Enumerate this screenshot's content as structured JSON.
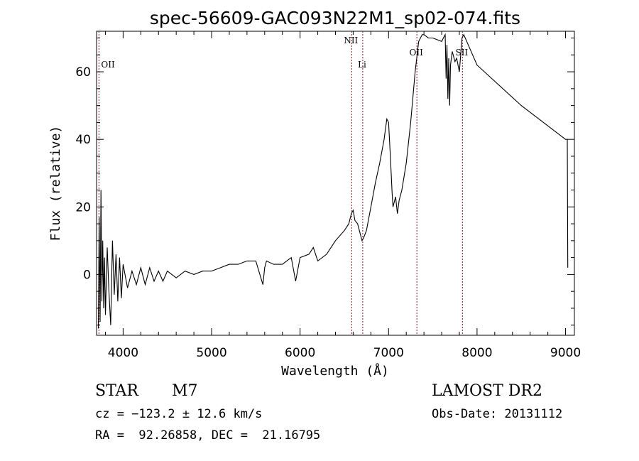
{
  "chart_data": {
    "type": "line",
    "title": "spec-56609-GAC093N22M1_sp02-074.fits",
    "xlabel": "Wavelength (Å)",
    "ylabel": "Flux (relative)",
    "xlim": [
      3700,
      9100
    ],
    "ylim": [
      -18,
      72
    ],
    "xticks": [
      4000,
      5000,
      6000,
      7000,
      8000,
      9000
    ],
    "yticks": [
      0,
      20,
      40,
      60
    ],
    "grid": false,
    "line_color": "#000000",
    "marker_color": "#8b1a1a",
    "lines": [
      {
        "name": "OII",
        "wave": 3727
      },
      {
        "name": "NII",
        "wave": 6583
      },
      {
        "name": "Li",
        "wave": 6708
      },
      {
        "name": "OII",
        "wave": 7320
      },
      {
        "name": "SII",
        "wave": 7835
      }
    ],
    "series": [
      {
        "x": [
          3720,
          3730,
          3740,
          3750,
          3760,
          3770,
          3780,
          3790,
          3800,
          3820,
          3840,
          3860,
          3880,
          3900,
          3920,
          3940,
          3960,
          3980,
          4000,
          4050,
          4100,
          4150,
          4200,
          4250,
          4300,
          4350,
          4400,
          4450,
          4500,
          4600,
          4700,
          4800,
          4900,
          5000,
          5100,
          5200,
          5300,
          5400,
          5500,
          5580,
          5600,
          5620,
          5700,
          5800,
          5900,
          5950,
          6000,
          6100,
          6150,
          6200,
          6300,
          6400,
          6500,
          6550,
          6580,
          6600,
          6620,
          6650,
          6680,
          6700,
          6720,
          6750,
          6800,
          6850,
          6900,
          6950,
          6980,
          7000,
          7020,
          7040,
          7050,
          7080,
          7100,
          7120,
          7150,
          7200,
          7250,
          7300,
          7340,
          7380,
          7400,
          7450,
          7500,
          7600,
          7620,
          7640,
          7650,
          7660,
          7670,
          7680,
          7690,
          7700,
          7720,
          7750,
          7770,
          7800,
          7830,
          7850,
          8000,
          8500,
          9000,
          9020,
          9025
        ],
        "y": [
          -16,
          17,
          -14,
          25,
          -8,
          10,
          -10,
          5,
          -12,
          8,
          -5,
          -15,
          10,
          -6,
          6,
          -8,
          5,
          -7,
          3,
          -4,
          1,
          -3,
          2,
          -3,
          2,
          -2,
          1,
          -2,
          1,
          -1,
          1,
          0,
          1,
          1,
          2,
          3,
          3,
          4,
          4,
          -3,
          2,
          4,
          3,
          3,
          5,
          -2,
          5,
          6,
          8,
          4,
          6,
          10,
          13,
          15,
          18,
          19,
          16,
          15,
          12,
          10,
          11,
          13,
          20,
          27,
          33,
          40,
          46,
          45,
          35,
          24,
          20,
          23,
          18,
          22,
          25,
          33,
          45,
          60,
          69,
          71,
          71,
          70,
          70,
          69,
          70,
          71,
          58,
          68,
          52,
          64,
          50,
          62,
          66,
          63,
          64,
          60,
          70,
          71,
          62,
          50,
          40,
          40,
          2
        ]
      }
    ]
  },
  "info": {
    "object_class": "STAR",
    "subclass": "M7",
    "survey": "LAMOST DR2",
    "cz": "cz = −123.2 ± 12.6 km/s",
    "obs_date": "Obs-Date: 20131112",
    "radec": "RA =  92.26858, DEC =  21.16795"
  }
}
